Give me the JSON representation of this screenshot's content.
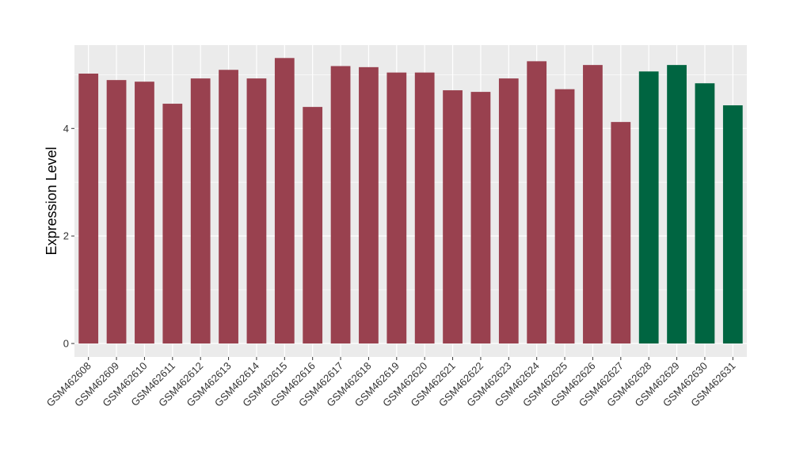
{
  "chart_data": {
    "type": "bar",
    "title": "",
    "xlabel": "",
    "ylabel": "Expression Level",
    "ylim": [
      -0.25,
      5.55
    ],
    "yticks": [
      0,
      2,
      4
    ],
    "grid": true,
    "categories": [
      "GSM462608",
      "GSM462609",
      "GSM462610",
      "GSM462611",
      "GSM462612",
      "GSM462613",
      "GSM462614",
      "GSM462615",
      "GSM462616",
      "GSM462617",
      "GSM462618",
      "GSM462619",
      "GSM462620",
      "GSM462621",
      "GSM462622",
      "GSM462623",
      "GSM462624",
      "GSM462625",
      "GSM462626",
      "GSM462627",
      "GSM462628",
      "GSM462629",
      "GSM462630",
      "GSM462631"
    ],
    "values": [
      5.02,
      4.9,
      4.87,
      4.46,
      4.93,
      5.09,
      4.93,
      5.31,
      4.4,
      5.16,
      5.14,
      5.04,
      5.04,
      4.71,
      4.68,
      4.93,
      5.25,
      4.73,
      5.18,
      4.12,
      5.06,
      5.18,
      4.84,
      4.43
    ],
    "groups": [
      0,
      0,
      0,
      0,
      0,
      0,
      0,
      0,
      0,
      0,
      0,
      0,
      0,
      0,
      0,
      0,
      0,
      0,
      0,
      0,
      1,
      1,
      1,
      1
    ],
    "colors": {
      "group_0": "#99414f",
      "group_1": "#006541",
      "panel": "#ebebeb",
      "grid": "#ffffff",
      "text": "#000000"
    }
  }
}
